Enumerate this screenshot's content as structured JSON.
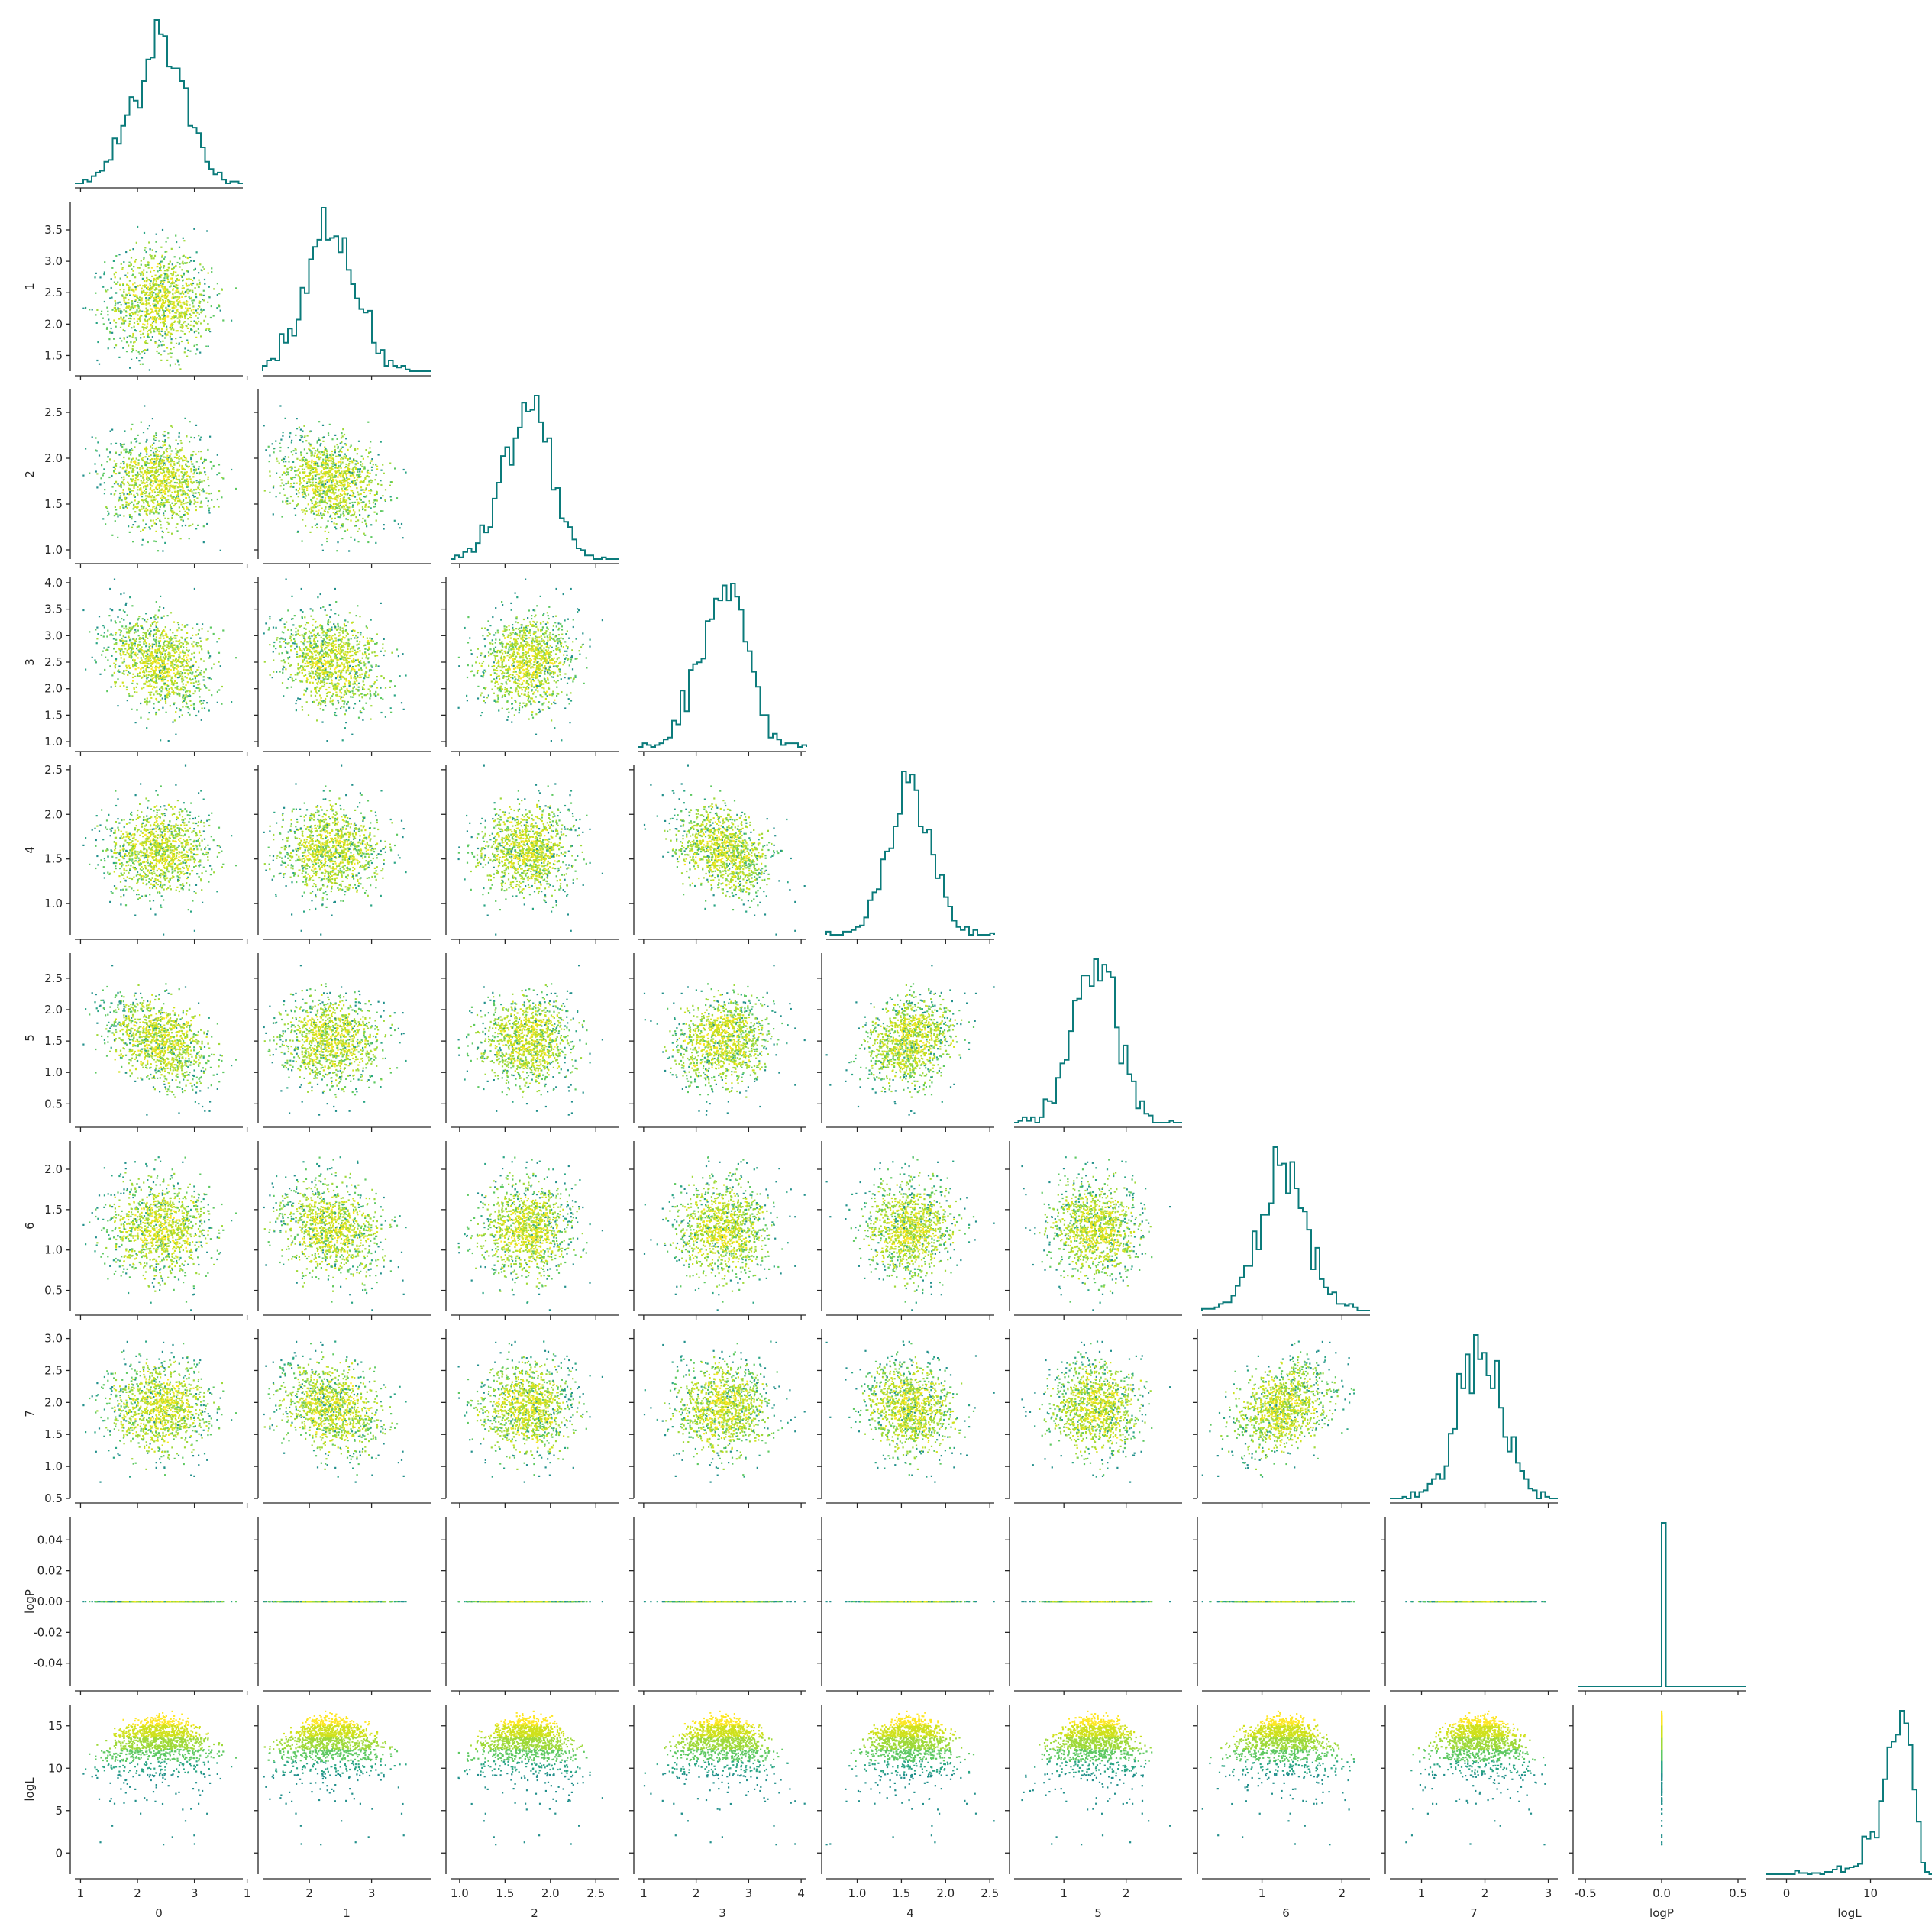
{
  "chart_data": {
    "type": "corner",
    "description_note": "",
    "variables": [
      "0",
      "1",
      "2",
      "3",
      "4",
      "5",
      "6",
      "7",
      "logP",
      "logL"
    ],
    "colors": {
      "histogram_line": "#0b7b7b",
      "axis": "#262626",
      "scatter_colormap": [
        "#22908c",
        "#2aa585",
        "#5ec962",
        "#9fd939",
        "#cfe11c",
        "#fde725"
      ]
    },
    "scatter_color_by": "logL",
    "n_samples_per_panel": 1200,
    "marginals": [
      {
        "mean": 2.4,
        "sd": 0.45,
        "range": [
          0.9,
          3.85
        ]
      },
      {
        "mean": 2.35,
        "sd": 0.4,
        "range": [
          1.25,
          3.95
        ]
      },
      {
        "mean": 1.75,
        "sd": 0.25,
        "range": [
          0.9,
          2.75
        ]
      },
      {
        "mean": 2.5,
        "sd": 0.45,
        "range": [
          0.9,
          4.1
        ]
      },
      {
        "mean": 1.6,
        "sd": 0.25,
        "range": [
          0.65,
          2.55
        ]
      },
      {
        "mean": 1.5,
        "sd": 0.35,
        "range": [
          0.2,
          2.9
        ]
      },
      {
        "mean": 1.25,
        "sd": 0.3,
        "range": [
          0.25,
          2.35
        ]
      },
      {
        "mean": 1.9,
        "sd": 0.35,
        "range": [
          0.5,
          3.15
        ]
      },
      {
        "mean": 0.0,
        "sd": 0.0,
        "range": [
          -0.55,
          0.55
        ]
      },
      {
        "mean": 13.0,
        "sd": 2.0,
        "range": [
          -2.5,
          17.5
        ]
      }
    ],
    "correlations": [
      {
        "pair": [
          "0",
          "3"
        ],
        "r": -0.3
      },
      {
        "pair": [
          "0",
          "5"
        ],
        "r": -0.4
      },
      {
        "pair": [
          "1",
          "2"
        ],
        "r": -0.25
      },
      {
        "pair": [
          "1",
          "3"
        ],
        "r": -0.25
      },
      {
        "pair": [
          "1",
          "6"
        ],
        "r": -0.2
      },
      {
        "pair": [
          "1",
          "7"
        ],
        "r": -0.3
      },
      {
        "pair": [
          "3",
          "4"
        ],
        "r": -0.4
      },
      {
        "pair": [
          "4",
          "5"
        ],
        "r": 0.25
      },
      {
        "pair": [
          "4",
          "7"
        ],
        "r": -0.2
      },
      {
        "pair": [
          "5",
          "6"
        ],
        "r": -0.1
      },
      {
        "pair": [
          "6",
          "7"
        ],
        "r": 0.3
      }
    ],
    "x_ticks": [
      [
        "1",
        "2",
        "3"
      ],
      [
        "1",
        "2",
        "3"
      ],
      [
        "1.0",
        "1.5",
        "2.0",
        "2.5"
      ],
      [
        "1",
        "2",
        "3",
        "4"
      ],
      [
        "1.0",
        "1.5",
        "2.0",
        "2.5"
      ],
      [
        "1",
        "2"
      ],
      [
        "1",
        "2"
      ],
      [
        "1",
        "2",
        "3"
      ],
      [
        "-0.5",
        "0.0",
        "0.5"
      ],
      [
        "0",
        "10"
      ]
    ],
    "y_ticks": [
      [],
      [
        "1.5",
        "2.0",
        "2.5",
        "3.0",
        "3.5"
      ],
      [
        "1.0",
        "1.5",
        "2.0",
        "2.5"
      ],
      [
        "1.0",
        "1.5",
        "2.0",
        "2.5",
        "3.0",
        "3.5",
        "4.0"
      ],
      [
        "1.0",
        "1.5",
        "2.0",
        "2.5"
      ],
      [
        "0.5",
        "1.0",
        "1.5",
        "2.0",
        "2.5"
      ],
      [
        "0.5",
        "1.0",
        "1.5",
        "2.0"
      ],
      [
        "0.5",
        "1.0",
        "1.5",
        "2.0",
        "2.5",
        "3.0"
      ],
      [
        "-0.04",
        "-0.02",
        "0.00",
        "0.02",
        "0.04"
      ],
      [
        "0",
        "5",
        "10",
        "15"
      ]
    ],
    "y_ranges_offdiag": {
      "logP": [
        -0.055,
        0.055
      ],
      "logL": [
        -2.5,
        17.5
      ]
    },
    "histogram_bins": 40,
    "grid": false,
    "legend": "none"
  }
}
